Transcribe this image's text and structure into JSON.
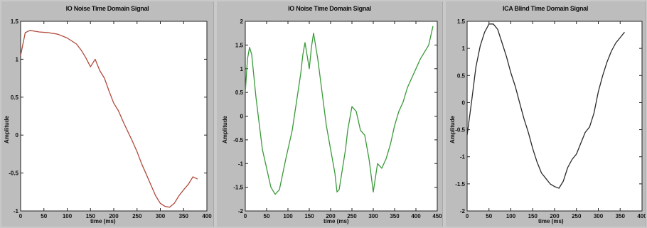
{
  "chart_data": [
    {
      "type": "line",
      "title": "IO Noise Time Domain Signal",
      "xlabel": "time (ms)",
      "ylabel": "Amplitude",
      "xlim": [
        0,
        400
      ],
      "ylim": [
        -1,
        1.5
      ],
      "x_ticks": [
        "0",
        "50",
        "100",
        "150",
        "200",
        "250",
        "300",
        "350",
        "400"
      ],
      "y_ticks": [
        "1.5",
        "1",
        "0.5",
        "0",
        "-0.5",
        "-1"
      ],
      "grid": false,
      "series": [
        {
          "color": "#b04a3c",
          "x": [
            0,
            10,
            20,
            40,
            60,
            80,
            100,
            120,
            130,
            140,
            150,
            160,
            170,
            180,
            190,
            200,
            210,
            220,
            230,
            240,
            250,
            260,
            270,
            280,
            290,
            300,
            310,
            320,
            330,
            340,
            350,
            360,
            370,
            380
          ],
          "y": [
            1.05,
            1.35,
            1.38,
            1.36,
            1.35,
            1.33,
            1.28,
            1.2,
            1.12,
            1.02,
            0.9,
            1.0,
            0.85,
            0.75,
            0.58,
            0.42,
            0.32,
            0.18,
            0.05,
            -0.08,
            -0.22,
            -0.38,
            -0.52,
            -0.66,
            -0.8,
            -0.9,
            -0.94,
            -0.95,
            -0.9,
            -0.8,
            -0.72,
            -0.65,
            -0.55,
            -0.58
          ]
        }
      ]
    },
    {
      "type": "line",
      "title": "IO Noise Time Domain Signal",
      "xlabel": "time (ms)",
      "ylabel": "Amplitude",
      "xlim": [
        0,
        450
      ],
      "ylim": [
        -2,
        2
      ],
      "x_ticks": [
        "0",
        "50",
        "100",
        "150",
        "200",
        "250",
        "300",
        "350",
        "400",
        "450"
      ],
      "y_ticks": [
        "2",
        "1.5",
        "1",
        "0.5",
        "0",
        "-0.5",
        "-1",
        "-1.5",
        "-2"
      ],
      "grid": false,
      "series": [
        {
          "color": "#3a9a3a",
          "x": [
            0,
            5,
            10,
            15,
            25,
            40,
            60,
            70,
            80,
            95,
            110,
            120,
            130,
            135,
            140,
            150,
            155,
            160,
            170,
            180,
            190,
            200,
            210,
            215,
            220,
            235,
            240,
            250,
            260,
            270,
            280,
            290,
            300,
            310,
            320,
            330,
            340,
            350,
            360,
            370,
            380,
            390,
            400,
            410,
            420,
            430,
            440
          ],
          "y": [
            0.5,
            1.2,
            1.45,
            1.3,
            0.4,
            -0.7,
            -1.5,
            -1.65,
            -1.55,
            -0.9,
            -0.3,
            0.3,
            0.9,
            1.3,
            1.55,
            1.0,
            1.45,
            1.75,
            1.2,
            0.5,
            -0.2,
            -0.7,
            -1.2,
            -1.6,
            -1.55,
            -0.7,
            -0.3,
            0.2,
            0.1,
            -0.3,
            -0.4,
            -0.9,
            -1.6,
            -1.0,
            -1.1,
            -0.9,
            -0.6,
            -0.2,
            0.1,
            0.3,
            0.6,
            0.8,
            1.0,
            1.2,
            1.35,
            1.5,
            1.9
          ]
        }
      ]
    },
    {
      "type": "line",
      "title": "ICA Blind Time Domain Signal",
      "xlabel": "time (ms)",
      "ylabel": "Amplitude",
      "xlim": [
        0,
        400
      ],
      "ylim": [
        -2,
        1.5
      ],
      "x_ticks": [
        "0",
        "50",
        "100",
        "150",
        "200",
        "250",
        "300",
        "350",
        "400"
      ],
      "y_ticks": [
        "1.5",
        "1",
        "0.5",
        "0",
        "-0.5",
        "-1",
        "-1.5",
        "-2"
      ],
      "grid": false,
      "series": [
        {
          "color": "#2a2a2a",
          "x": [
            0,
            10,
            20,
            30,
            40,
            50,
            60,
            70,
            80,
            90,
            100,
            110,
            120,
            130,
            140,
            150,
            160,
            170,
            180,
            190,
            200,
            210,
            220,
            230,
            240,
            250,
            260,
            270,
            280,
            290,
            300,
            310,
            320,
            330,
            340,
            350,
            360
          ],
          "y": [
            -0.6,
            0.0,
            0.65,
            1.05,
            1.3,
            1.45,
            1.45,
            1.35,
            1.1,
            0.85,
            0.55,
            0.3,
            0.0,
            -0.3,
            -0.55,
            -0.85,
            -1.1,
            -1.3,
            -1.4,
            -1.5,
            -1.55,
            -1.58,
            -1.45,
            -1.2,
            -1.05,
            -0.95,
            -0.75,
            -0.55,
            -0.45,
            -0.2,
            0.2,
            0.5,
            0.75,
            0.95,
            1.1,
            1.2,
            1.3
          ]
        }
      ]
    }
  ]
}
